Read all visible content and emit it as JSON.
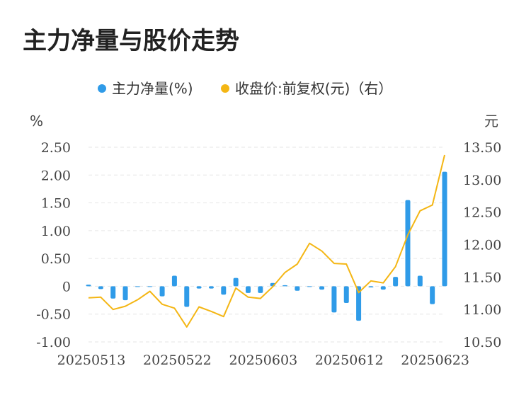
{
  "title": "主力净量与股价走势",
  "colors": {
    "bar": "#2f9be8",
    "line": "#f4b614",
    "grid": "#e6e6e6",
    "text": "#444444"
  },
  "legend": {
    "left_label": "主力净量(%)",
    "right_label": "收盘价:前复权(元)（右）"
  },
  "axes": {
    "left_unit": "%",
    "right_unit": "元",
    "left_ticks": [
      "2.50",
      "2.00",
      "1.50",
      "1.00",
      "0.50",
      "0",
      "-0.50",
      "-1.00"
    ],
    "right_ticks": [
      "13.50",
      "13.00",
      "12.50",
      "12.00",
      "11.50",
      "11.00",
      "10.50"
    ],
    "x_ticks": [
      "20250513",
      "20250522",
      "20250603",
      "20250612",
      "20250623"
    ]
  },
  "chart_data": {
    "type": "bar",
    "title": "主力净量与股价走势",
    "x_tick_labels": [
      "20250513",
      "20250522",
      "20250603",
      "20250612",
      "20250623"
    ],
    "x_tick_indices": [
      0,
      7,
      14,
      21,
      28
    ],
    "left_ylim": [
      -1.0,
      2.5
    ],
    "right_ylim": [
      10.5,
      13.5
    ],
    "grid": true,
    "legend_position": "top",
    "series": [
      {
        "name": "主力净量(%)",
        "axis": "left",
        "type": "bar",
        "values": [
          0.03,
          -0.05,
          -0.22,
          -0.25,
          -0.01,
          -0.01,
          -0.18,
          0.19,
          -0.37,
          -0.04,
          -0.04,
          -0.15,
          0.15,
          -0.12,
          -0.12,
          0.06,
          0.02,
          -0.08,
          -0.01,
          -0.06,
          -0.47,
          -0.3,
          -0.62,
          -0.02,
          -0.06,
          0.17,
          1.55,
          0.19,
          -0.32,
          2.06
        ]
      },
      {
        "name": "收盘价:前复权(元)（右）",
        "axis": "right",
        "type": "line",
        "values": [
          11.18,
          11.19,
          11.0,
          11.05,
          11.15,
          11.28,
          11.08,
          11.02,
          10.73,
          11.04,
          10.97,
          10.89,
          11.33,
          11.19,
          11.17,
          11.35,
          11.57,
          11.7,
          12.02,
          11.9,
          11.71,
          11.7,
          11.26,
          11.44,
          11.41,
          11.66,
          12.15,
          12.52,
          12.61,
          13.38
        ]
      }
    ]
  }
}
